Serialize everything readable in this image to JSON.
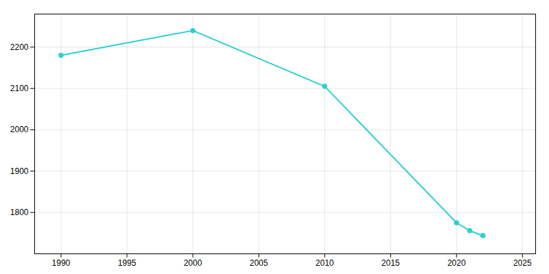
{
  "chart_data": {
    "type": "line",
    "x": [
      1990,
      2000,
      2010,
      2020,
      2021,
      2022
    ],
    "values": [
      2180,
      2240,
      2105,
      1775,
      1756,
      1744
    ],
    "color": "#2dcfcf",
    "marker": "circle",
    "xlim": [
      1988,
      2026
    ],
    "ylim": [
      1700,
      2280
    ],
    "xticks": [
      1990,
      1995,
      2000,
      2005,
      2010,
      2015,
      2020,
      2025
    ],
    "yticks": [
      1800,
      1900,
      2000,
      2100,
      2200
    ],
    "grid": true
  }
}
